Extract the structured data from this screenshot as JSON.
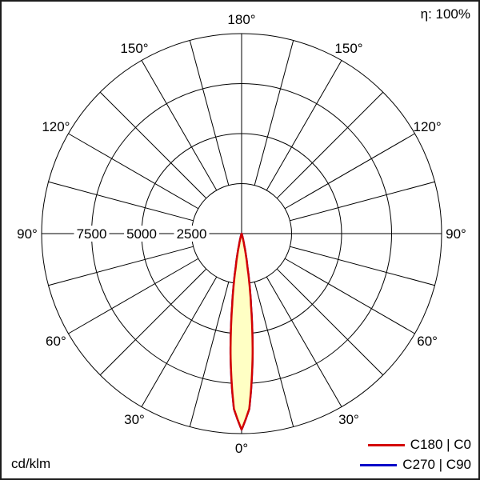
{
  "header": {
    "eta_label": "η: 100%"
  },
  "footer": {
    "unit_label": "cd/klm"
  },
  "legend": {
    "items": [
      {
        "label": "C180 | C0",
        "color": "#d40000"
      },
      {
        "label": "C270 | C90",
        "color": "#0000c8"
      }
    ]
  },
  "chart_data": {
    "type": "polar",
    "subtype": "luminous-intensity-distribution",
    "unit": "cd/klm",
    "efficiency_percent": 100,
    "max_value": 10000,
    "ring_values": [
      2500,
      5000,
      7500,
      10000
    ],
    "ring_tick_values": [
      7500,
      5000,
      2500
    ],
    "ring_tick_labels": [
      "7500",
      "5000",
      "2500"
    ],
    "spoke_step_deg": 15,
    "angle_tick_deg": [
      0,
      30,
      60,
      90,
      120,
      150,
      180
    ],
    "angle_tick_labels": [
      "0°",
      "30°",
      "60°",
      "90°",
      "120°",
      "150°",
      "180°"
    ],
    "grid_color": "#000000",
    "beam_fill": "#ffffc4",
    "series": [
      {
        "name": "C270 | C90",
        "color": "#0000c8",
        "fill": "none",
        "symmetric": true,
        "gamma_deg": [
          0,
          2.5,
          5,
          7.5,
          10,
          12.5,
          15,
          17.5,
          20,
          22.5
        ],
        "intensity_cd_per_klm": [
          9800,
          8770,
          6280,
          3600,
          1660,
          610,
          180,
          40,
          10,
          0
        ]
      },
      {
        "name": "C180 | C0",
        "color": "#d40000",
        "fill": "#ffffc4",
        "symmetric": true,
        "gamma_deg": [
          0,
          2.5,
          5,
          7.5,
          10,
          12.5,
          15,
          17.5,
          20,
          22.5
        ],
        "intensity_cd_per_klm": [
          9800,
          8770,
          6280,
          3600,
          1660,
          610,
          180,
          40,
          10,
          0
        ]
      }
    ]
  }
}
